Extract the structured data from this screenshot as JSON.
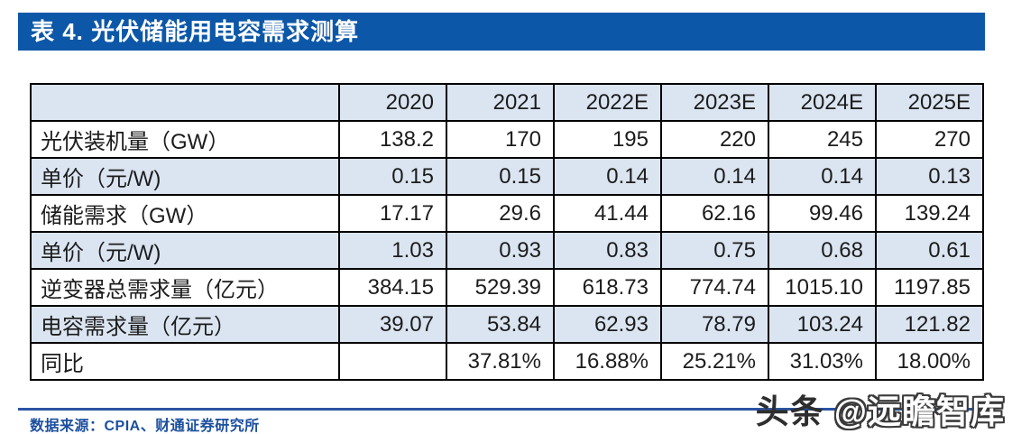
{
  "page": {
    "title": "表 4. 光伏储能用电容需求测算"
  },
  "table": {
    "header": [
      "",
      "2020",
      "2021",
      "2022E",
      "2023E",
      "2024E",
      "2025E"
    ],
    "rows": [
      {
        "label": "光伏装机量（GW）",
        "values": [
          "138.2",
          "170",
          "195",
          "220",
          "245",
          "270"
        ]
      },
      {
        "label": "单价（元/W)",
        "values": [
          "0.15",
          "0.15",
          "0.14",
          "0.14",
          "0.14",
          "0.13"
        ]
      },
      {
        "label": "储能需求（GW）",
        "values": [
          "17.17",
          "29.6",
          "41.44",
          "62.16",
          "99.46",
          "139.24"
        ]
      },
      {
        "label": "单价（元/W)",
        "values": [
          "1.03",
          "0.93",
          "0.83",
          "0.75",
          "0.68",
          "0.61"
        ]
      },
      {
        "label": "逆变器总需求量（亿元）",
        "values": [
          "384.15",
          "529.39",
          "618.73",
          "774.74",
          "1015.10",
          "1197.85"
        ]
      },
      {
        "label": "电容需求量（亿元）",
        "values": [
          "39.07",
          "53.84",
          "62.93",
          "78.79",
          "103.24",
          "121.82"
        ]
      },
      {
        "label": "同比",
        "values": [
          "",
          "37.81%",
          "16.88%",
          "25.21%",
          "31.03%",
          "18.00%"
        ]
      }
    ]
  },
  "footer": {
    "source": "数据来源：CPIA、财通证券研究所"
  },
  "watermark": {
    "prefix": "头条",
    "handle": "@远瞻智库"
  },
  "colors": {
    "title_bar": "#0c57a8",
    "row_shaded": "#dbe5f1",
    "border": "#000000",
    "footer_blue": "#1b4f9f",
    "footer_line": "#2b55a3"
  }
}
